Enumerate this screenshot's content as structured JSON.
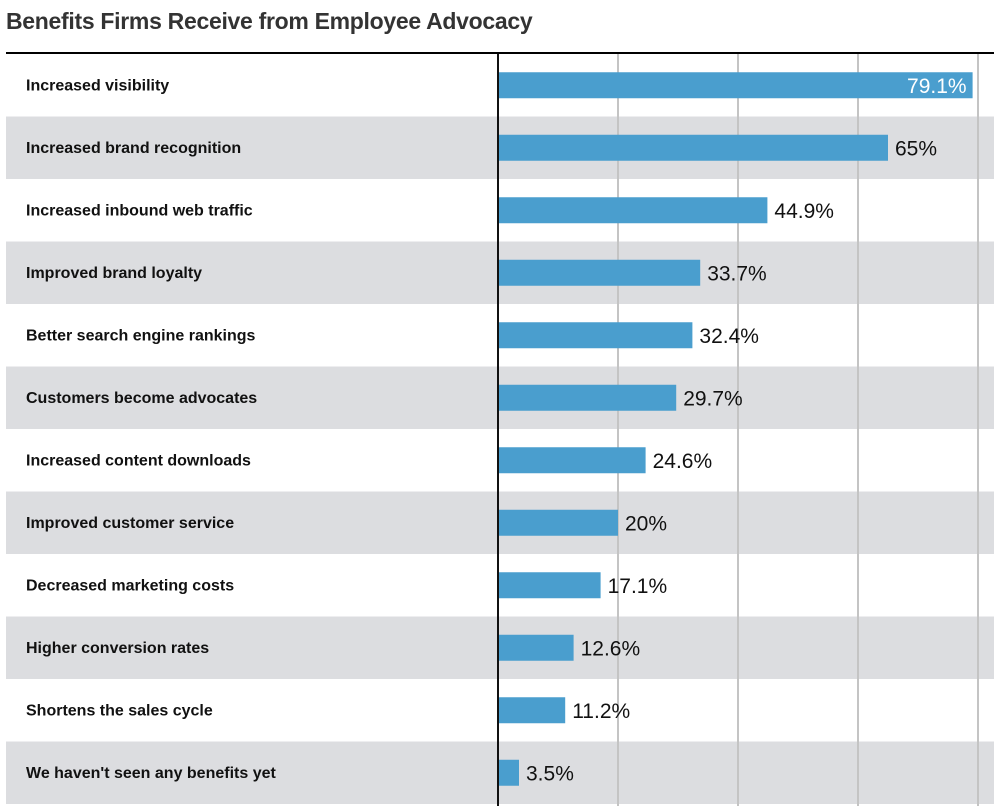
{
  "chart_data": {
    "type": "bar",
    "orientation": "horizontal",
    "title": "Benefits Firms Receive from Employee Advocacy",
    "categories": [
      "Increased visibility",
      "Increased brand recognition",
      "Increased inbound web traffic",
      "Improved brand loyalty",
      "Better search engine rankings",
      "Customers become advocates",
      "Increased content downloads",
      "Improved customer service",
      "Decreased marketing costs",
      "Higher conversion rates",
      "Shortens the sales cycle",
      "We haven't seen any benefits yet"
    ],
    "values": [
      79.1,
      65,
      44.9,
      33.7,
      32.4,
      29.7,
      24.6,
      20,
      17.1,
      12.6,
      11.2,
      3.5
    ],
    "value_labels": [
      "79.1%",
      "65%",
      "44.9%",
      "33.7%",
      "32.4%",
      "29.7%",
      "24.6%",
      "20%",
      "17.1%",
      "12.6%",
      "11.2%",
      "3.5%"
    ],
    "xlim": [
      0,
      80
    ],
    "grid": true,
    "gridlines_at": [
      20,
      40,
      60
    ],
    "bar_color": "#4a9ece",
    "stripe_color": "#dcdde0",
    "xlabel": "",
    "ylabel": ""
  }
}
